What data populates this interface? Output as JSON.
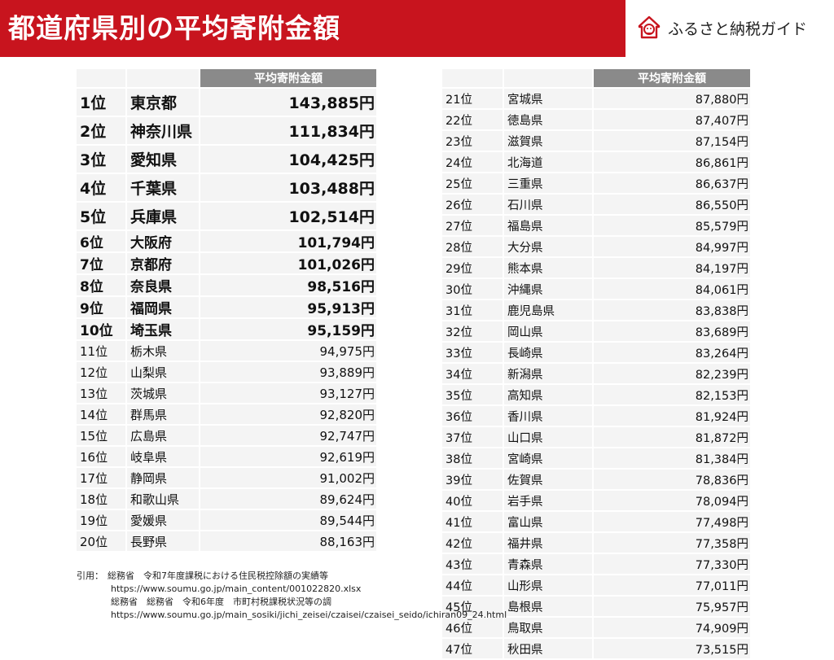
{
  "header": {
    "title": "都道府県別の平均寄附金額",
    "brand": "ふるさと納税ガイド",
    "brand_color": "#c8141e",
    "logo_icon": "furusato-house-face-icon"
  },
  "column_header": "平均寄附金額",
  "left_rows": [
    {
      "rank": "1位",
      "pref": "東京都",
      "amount": "143,885円"
    },
    {
      "rank": "2位",
      "pref": "神奈川県",
      "amount": "111,834円"
    },
    {
      "rank": "3位",
      "pref": "愛知県",
      "amount": "104,425円"
    },
    {
      "rank": "4位",
      "pref": "千葉県",
      "amount": "103,488円"
    },
    {
      "rank": "5位",
      "pref": "兵庫県",
      "amount": "102,514円"
    },
    {
      "rank": "6位",
      "pref": "大阪府",
      "amount": "101,794円"
    },
    {
      "rank": "7位",
      "pref": "京都府",
      "amount": "101,026円"
    },
    {
      "rank": "8位",
      "pref": "奈良県",
      "amount": "98,516円"
    },
    {
      "rank": "9位",
      "pref": "福岡県",
      "amount": "95,913円"
    },
    {
      "rank": "10位",
      "pref": "埼玉県",
      "amount": "95,159円"
    },
    {
      "rank": "11位",
      "pref": "栃木県",
      "amount": "94,975円"
    },
    {
      "rank": "12位",
      "pref": "山梨県",
      "amount": "93,889円"
    },
    {
      "rank": "13位",
      "pref": "茨城県",
      "amount": "93,127円"
    },
    {
      "rank": "14位",
      "pref": "群馬県",
      "amount": "92,820円"
    },
    {
      "rank": "15位",
      "pref": "広島県",
      "amount": "92,747円"
    },
    {
      "rank": "16位",
      "pref": "岐阜県",
      "amount": "92,619円"
    },
    {
      "rank": "17位",
      "pref": "静岡県",
      "amount": "91,002円"
    },
    {
      "rank": "18位",
      "pref": "和歌山県",
      "amount": "89,624円"
    },
    {
      "rank": "19位",
      "pref": "愛媛県",
      "amount": "89,544円"
    },
    {
      "rank": "20位",
      "pref": "長野県",
      "amount": "88,163円"
    }
  ],
  "right_rows": [
    {
      "rank": "21位",
      "pref": "宮城県",
      "amount": "87,880円"
    },
    {
      "rank": "22位",
      "pref": "徳島県",
      "amount": "87,407円"
    },
    {
      "rank": "23位",
      "pref": "滋賀県",
      "amount": "87,154円"
    },
    {
      "rank": "24位",
      "pref": "北海道",
      "amount": "86,861円"
    },
    {
      "rank": "25位",
      "pref": "三重県",
      "amount": "86,637円"
    },
    {
      "rank": "26位",
      "pref": "石川県",
      "amount": "86,550円"
    },
    {
      "rank": "27位",
      "pref": "福島県",
      "amount": "85,579円"
    },
    {
      "rank": "28位",
      "pref": "大分県",
      "amount": "84,997円"
    },
    {
      "rank": "29位",
      "pref": "熊本県",
      "amount": "84,197円"
    },
    {
      "rank": "30位",
      "pref": "沖縄県",
      "amount": "84,061円"
    },
    {
      "rank": "31位",
      "pref": "鹿児島県",
      "amount": "83,838円"
    },
    {
      "rank": "32位",
      "pref": "岡山県",
      "amount": "83,689円"
    },
    {
      "rank": "33位",
      "pref": "長崎県",
      "amount": "83,264円"
    },
    {
      "rank": "34位",
      "pref": "新潟県",
      "amount": "82,239円"
    },
    {
      "rank": "35位",
      "pref": "高知県",
      "amount": "82,153円"
    },
    {
      "rank": "36位",
      "pref": "香川県",
      "amount": "81,924円"
    },
    {
      "rank": "37位",
      "pref": "山口県",
      "amount": "81,872円"
    },
    {
      "rank": "38位",
      "pref": "宮崎県",
      "amount": "81,384円"
    },
    {
      "rank": "39位",
      "pref": "佐賀県",
      "amount": "78,836円"
    },
    {
      "rank": "40位",
      "pref": "岩手県",
      "amount": "78,094円"
    },
    {
      "rank": "41位",
      "pref": "富山県",
      "amount": "77,498円"
    },
    {
      "rank": "42位",
      "pref": "福井県",
      "amount": "77,358円"
    },
    {
      "rank": "43位",
      "pref": "青森県",
      "amount": "77,330円"
    },
    {
      "rank": "44位",
      "pref": "山形県",
      "amount": "77,011円"
    },
    {
      "rank": "45位",
      "pref": "島根県",
      "amount": "75,957円"
    },
    {
      "rank": "46位",
      "pref": "鳥取県",
      "amount": "74,909円"
    },
    {
      "rank": "47位",
      "pref": "秋田県",
      "amount": "73,515円"
    }
  ],
  "citation": {
    "lead": "引用：",
    "line1": "総務省　令和7年度課税における住民税控除額の実績等",
    "line2": "https://www.soumu.go.jp/main_content/001022820.xlsx",
    "line3": "総務省　総務省　令和6年度　市町村税課税状況等の調",
    "line4": "https://www.soumu.go.jp/main_sosiki/jichi_zeisei/czaisei/czaisei_seido/ichiran09_24.html"
  }
}
